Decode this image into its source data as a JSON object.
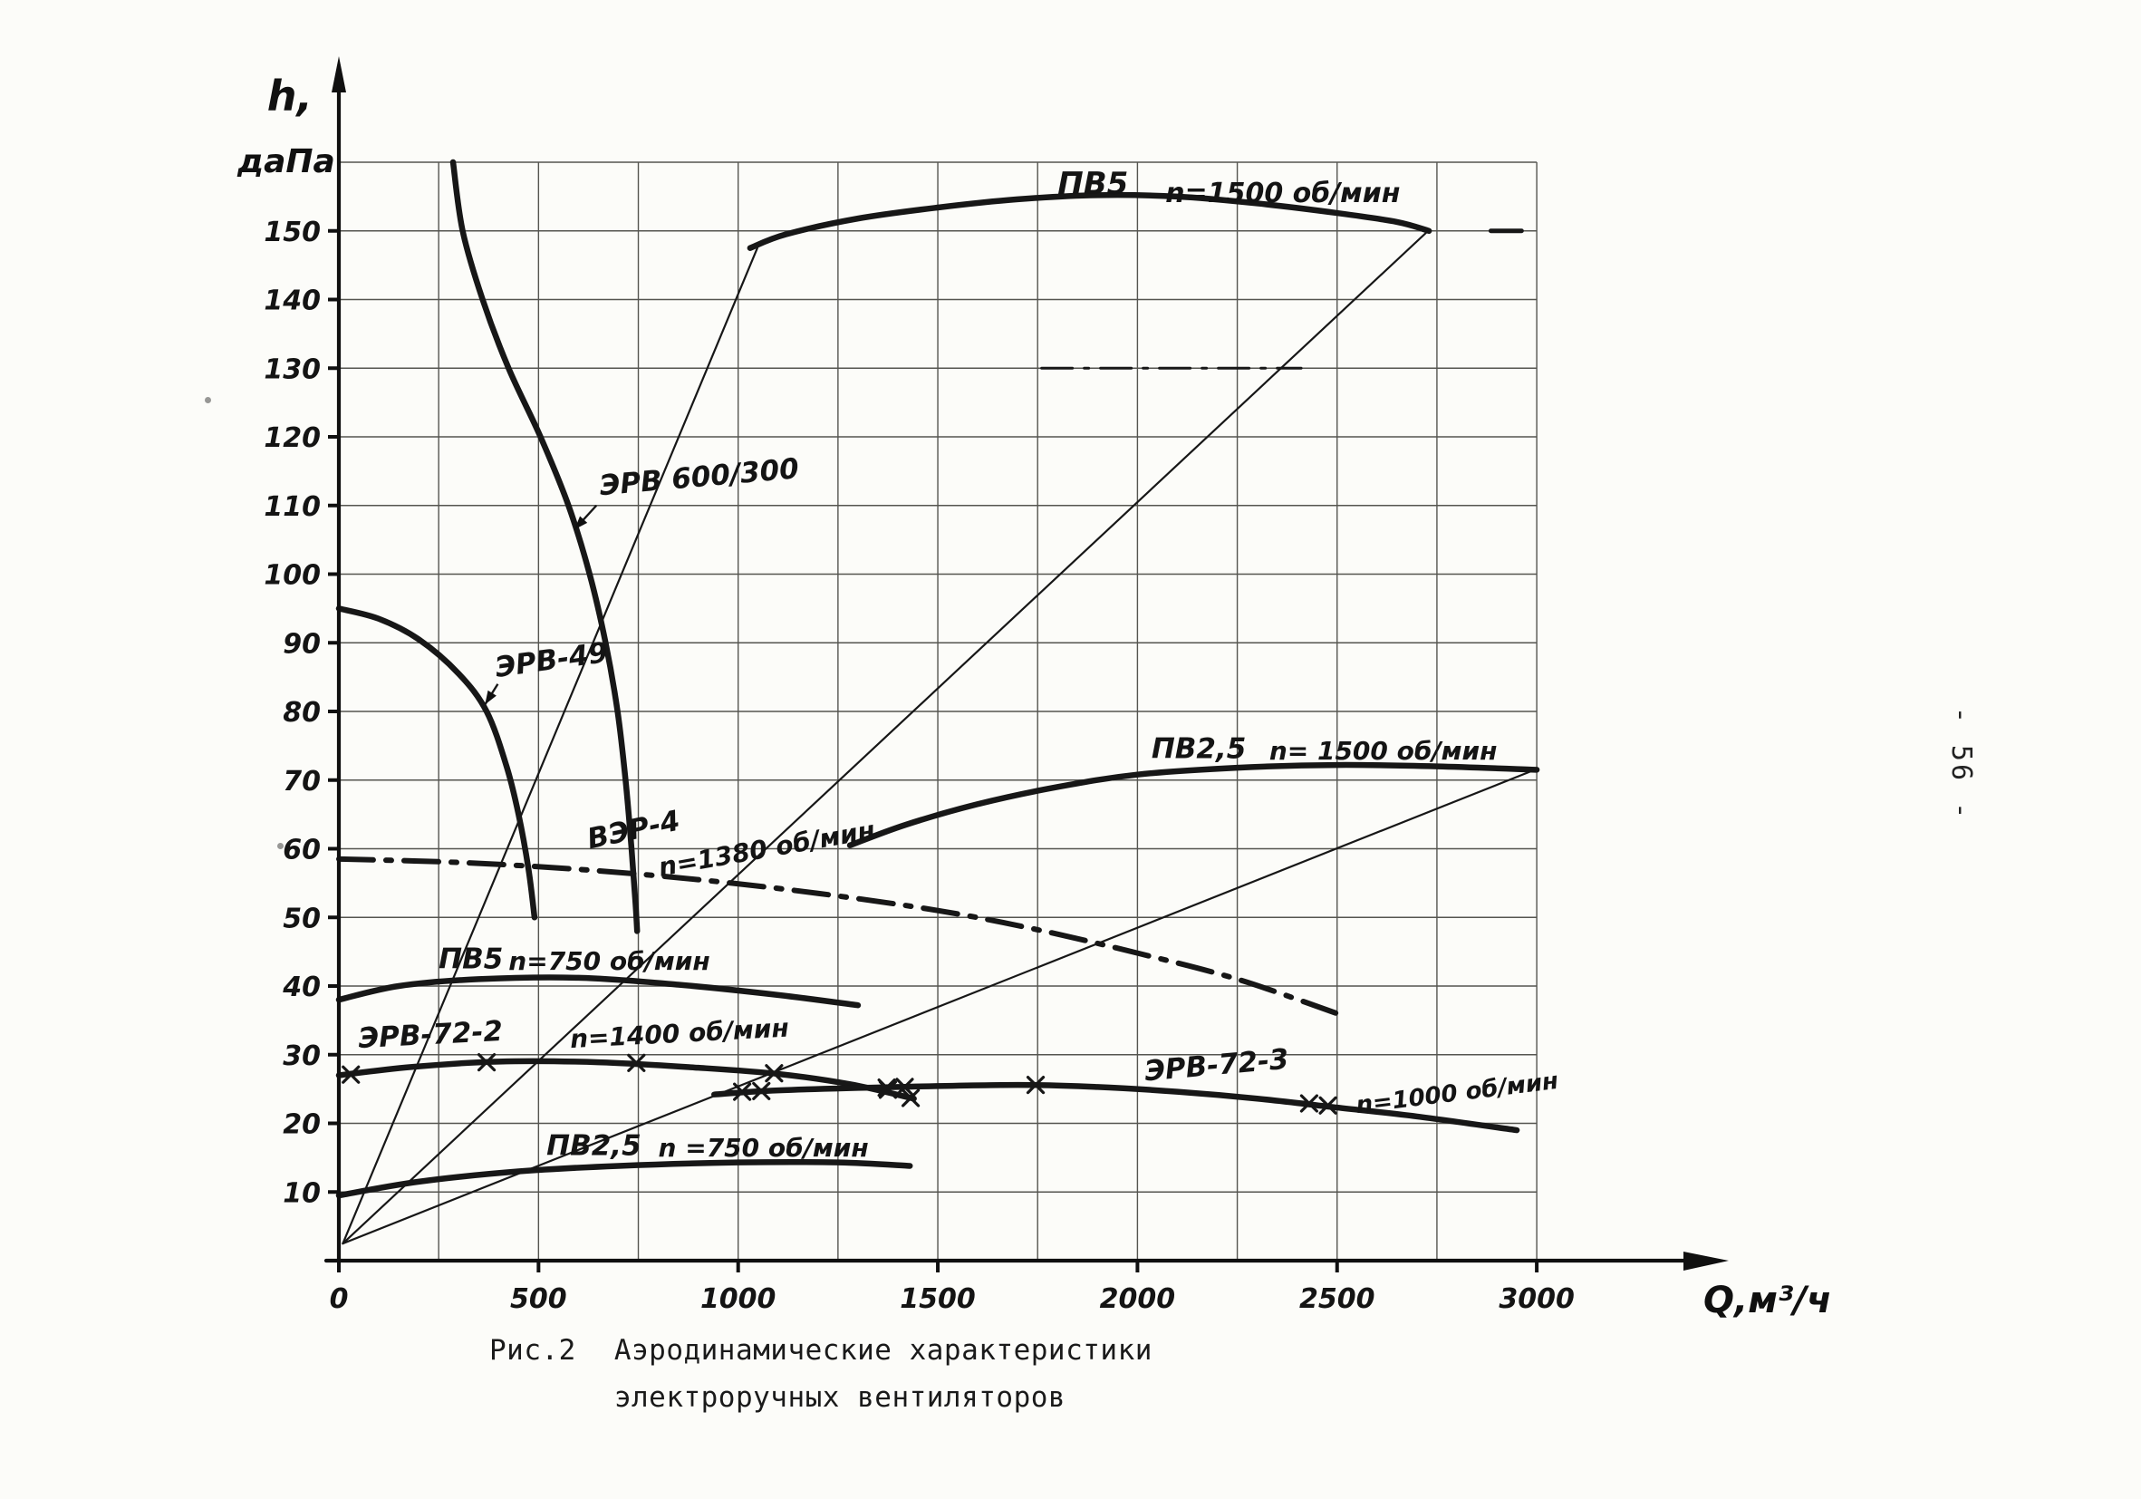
{
  "page": {
    "page_number": "- 56 -",
    "caption": {
      "figure_label": "Рис.2",
      "line1": "Аэродинамические характеристики",
      "line2": "электроручных вентиляторов"
    }
  },
  "chart_data": {
    "type": "line",
    "title": "Аэродинамические характеристики электроручных вентиляторов",
    "xlabel": "Q,м³/ч",
    "ylabel_line1": "h,",
    "ylabel_line2": "даПа",
    "xlim": [
      0,
      3150
    ],
    "ylim": [
      0,
      165
    ],
    "x_ticks": [
      0,
      500,
      1000,
      1500,
      2000,
      2500,
      3000
    ],
    "y_ticks": [
      10,
      20,
      30,
      40,
      50,
      60,
      70,
      80,
      90,
      100,
      110,
      120,
      130,
      140,
      150
    ],
    "grid": {
      "show": true,
      "x_step": 250,
      "y_step": 10,
      "x_max": 3000,
      "y_max": 160
    },
    "series": [
      {
        "name": "system-line-1",
        "style": "thin",
        "points": [
          [
            10,
            2.5
          ],
          [
            1048,
            147.5
          ]
        ]
      },
      {
        "name": "system-line-2",
        "style": "thin",
        "points": [
          [
            10,
            2.5
          ],
          [
            2728,
            150
          ]
        ]
      },
      {
        "name": "system-line-3",
        "style": "thin",
        "points": [
          [
            10,
            2.5
          ],
          [
            2995,
            71.5
          ]
        ]
      },
      {
        "name": "dashdot-mark-130",
        "style": "dashdot_thin",
        "points": [
          [
            1760,
            130
          ],
          [
            2410,
            130
          ]
        ]
      },
      {
        "name": "ЭРВ 600/300",
        "style": "bold",
        "points": [
          [
            286,
            160
          ],
          [
            310,
            150
          ],
          [
            360,
            140
          ],
          [
            425,
            130
          ],
          [
            505,
            120
          ],
          [
            575,
            110
          ],
          [
            628,
            100
          ],
          [
            668,
            90
          ],
          [
            698,
            80
          ],
          [
            718,
            70
          ],
          [
            733,
            60
          ],
          [
            743,
            52
          ],
          [
            747,
            48
          ]
        ]
      },
      {
        "name": "ЭРВ-49",
        "style": "bold",
        "points": [
          [
            0,
            95
          ],
          [
            100,
            93.5
          ],
          [
            200,
            90.5
          ],
          [
            300,
            85.5
          ],
          [
            370,
            80
          ],
          [
            420,
            72
          ],
          [
            450,
            65
          ],
          [
            475,
            57
          ],
          [
            490,
            50
          ]
        ]
      },
      {
        "name": "ПВ5 n=1500 об/мин",
        "style": "bold",
        "points": [
          [
            1030,
            147.5
          ],
          [
            1120,
            149.5
          ],
          [
            1300,
            151.8
          ],
          [
            1500,
            153.4
          ],
          [
            1700,
            154.6
          ],
          [
            1900,
            155.2
          ],
          [
            2100,
            155
          ],
          [
            2300,
            154
          ],
          [
            2500,
            152.6
          ],
          [
            2650,
            151.3
          ],
          [
            2730,
            150
          ]
        ]
      },
      {
        "name": "stray-dash-150",
        "style": "mid",
        "points": [
          [
            2885,
            150
          ],
          [
            2962,
            150
          ]
        ]
      },
      {
        "name": "ПВ2,5 n=1500 об/мин",
        "style": "bold",
        "points": [
          [
            1280,
            60.5
          ],
          [
            1420,
            63.5
          ],
          [
            1600,
            66.5
          ],
          [
            1800,
            69
          ],
          [
            2000,
            70.8
          ],
          [
            2250,
            71.8
          ],
          [
            2500,
            72.2
          ],
          [
            2750,
            72
          ],
          [
            3000,
            71.5
          ]
        ]
      },
      {
        "name": "ВЭР-4 n=1380 об/мин",
        "style": "dashdot",
        "points": [
          [
            0,
            58.5
          ],
          [
            300,
            58
          ],
          [
            600,
            57
          ],
          [
            900,
            55.5
          ],
          [
            1200,
            53.5
          ],
          [
            1500,
            51
          ],
          [
            1750,
            48.2
          ],
          [
            2000,
            44.8
          ],
          [
            2250,
            41
          ],
          [
            2500,
            36
          ]
        ]
      },
      {
        "name": "ПВ5 n=750 об/мин",
        "style": "bold",
        "points": [
          [
            0,
            38
          ],
          [
            150,
            40
          ],
          [
            350,
            41
          ],
          [
            600,
            41.2
          ],
          [
            850,
            40.2
          ],
          [
            1100,
            38.7
          ],
          [
            1300,
            37.2
          ]
        ]
      },
      {
        "name": "ЭРВ-72-2 n=1400 об/мин",
        "style": "bold",
        "marker": "x",
        "points": [
          [
            0,
            27
          ],
          [
            180,
            28.2
          ],
          [
            400,
            29
          ],
          [
            650,
            28.9
          ],
          [
            900,
            28.1
          ],
          [
            1100,
            27.2
          ],
          [
            1280,
            25.7
          ],
          [
            1440,
            23.6
          ]
        ],
        "marker_points": [
          [
            30,
            27.1
          ],
          [
            370,
            28.9
          ],
          [
            745,
            28.8
          ],
          [
            1090,
            27.3
          ],
          [
            1375,
            24.9
          ],
          [
            1432,
            23.7
          ]
        ]
      },
      {
        "name": "ЭРВ-72-3 n=1000 об/мин",
        "style": "bold",
        "marker": "x",
        "points": [
          [
            940,
            24.2
          ],
          [
            1100,
            24.8
          ],
          [
            1400,
            25.3
          ],
          [
            1700,
            25.6
          ],
          [
            1900,
            25.3
          ],
          [
            2100,
            24.6
          ],
          [
            2300,
            23.6
          ],
          [
            2500,
            22.3
          ],
          [
            2700,
            21
          ],
          [
            2950,
            19
          ]
        ],
        "marker_points": [
          [
            1010,
            24.6
          ],
          [
            1058,
            24.7
          ],
          [
            1372,
            25.2
          ],
          [
            1417,
            25.3
          ],
          [
            1745,
            25.6
          ],
          [
            2430,
            22.9
          ],
          [
            2477,
            22.6
          ]
        ]
      },
      {
        "name": "ПВ2,5 n=750 об/мин",
        "style": "bold",
        "points": [
          [
            0,
            9.5
          ],
          [
            200,
            11.5
          ],
          [
            450,
            13
          ],
          [
            700,
            13.8
          ],
          [
            1000,
            14.3
          ],
          [
            1250,
            14.3
          ],
          [
            1430,
            13.8
          ]
        ]
      }
    ],
    "annotations": [
      {
        "text": "ПВ5",
        "q": 1800,
        "h": 155.4,
        "size": 34,
        "rot": 0
      },
      {
        "text": "n=1500 об/мин",
        "q": 2070,
        "h": 154.2,
        "size": 30,
        "rot": 0
      },
      {
        "text": "ЭРВ 600/300",
        "q": 655,
        "h": 111.5,
        "size": 31,
        "rot": -5
      },
      {
        "text": "ЭРВ-49",
        "q": 395,
        "h": 85,
        "size": 31,
        "rot": -8
      },
      {
        "text": "ВЭР-4",
        "q": 628,
        "h": 60,
        "size": 31,
        "rot": -12
      },
      {
        "text": "n=1380 об/мин",
        "q": 805,
        "h": 56,
        "size": 28,
        "rot": -10
      },
      {
        "text": "ПВ2,5",
        "q": 2035,
        "h": 73.2,
        "size": 31,
        "rot": 0
      },
      {
        "text": "n= 1500 об/мин",
        "q": 2330,
        "h": 73,
        "size": 28,
        "rot": 0
      },
      {
        "text": "ПВ5",
        "q": 250,
        "h": 42.6,
        "size": 31,
        "rot": 0
      },
      {
        "text": "n=750 об/мин",
        "q": 425,
        "h": 42.4,
        "size": 28,
        "rot": 0
      },
      {
        "text": "ЭРВ-72-2",
        "q": 50,
        "h": 31,
        "size": 31,
        "rot": -3
      },
      {
        "text": "n=1400 об/мин",
        "q": 580,
        "h": 31,
        "size": 28,
        "rot": -3
      },
      {
        "text": "ЭРВ-72-3",
        "q": 2020,
        "h": 26.2,
        "size": 31,
        "rot": -5
      },
      {
        "text": "n=1000 об/мин",
        "q": 2550,
        "h": 21.5,
        "size": 26,
        "rot": -7
      },
      {
        "text": "ПВ2,5",
        "q": 520,
        "h": 15.4,
        "size": 31,
        "rot": 0
      },
      {
        "text": "n =750 об/мин",
        "q": 800,
        "h": 15.2,
        "size": 28,
        "rot": 0
      }
    ],
    "arrows": [
      {
        "from": [
          645,
          110
        ],
        "to": [
          590,
          106.5
        ]
      },
      {
        "from": [
          398,
          84
        ],
        "to": [
          366,
          81
        ]
      }
    ]
  }
}
